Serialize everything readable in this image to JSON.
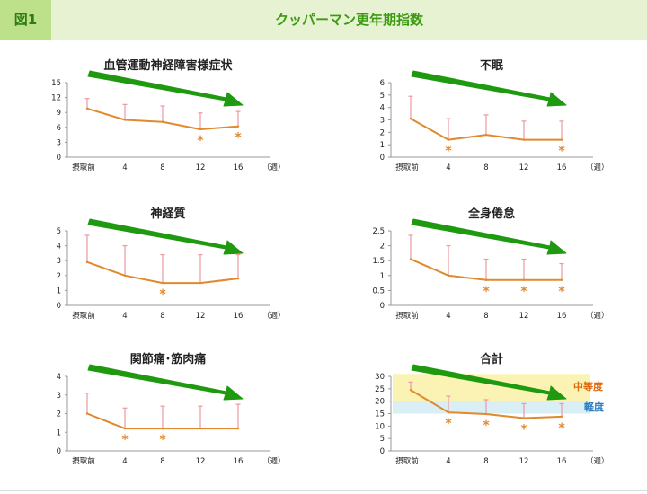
{
  "header": {
    "figure_label": "図1",
    "title": "クッパーマン更年期指数"
  },
  "colors": {
    "line": "#e0892e",
    "error_bar": "#e89aa0",
    "arrow": "#1f9a10",
    "moderate_band": "#fbf3b4",
    "mild_band": "#daeef6",
    "moderate_text": "#e06a10",
    "mild_text": "#2a7cc0"
  },
  "chart_data": [
    {
      "type": "line",
      "title": "血管運動神経障害様症状",
      "categories": [
        "摂取前",
        "4",
        "8",
        "12",
        "16"
      ],
      "x_unit": "（週）",
      "ylim": [
        0,
        15
      ],
      "yticks": [
        "0",
        "3",
        "6",
        "9",
        "12",
        "15"
      ],
      "values": [
        9.8,
        7.5,
        7.1,
        5.6,
        6.2
      ],
      "errors": [
        2.0,
        3.1,
        3.2,
        3.3,
        3.0
      ],
      "significant": [
        false,
        false,
        false,
        true,
        true
      ],
      "trend_arrow": true
    },
    {
      "type": "line",
      "title": "不眠",
      "categories": [
        "摂取前",
        "4",
        "8",
        "12",
        "16"
      ],
      "x_unit": "（週）",
      "ylim": [
        0,
        6
      ],
      "yticks": [
        "0",
        "1",
        "2",
        "3",
        "4",
        "5",
        "6"
      ],
      "values": [
        3.1,
        1.4,
        1.8,
        1.4,
        1.4
      ],
      "errors": [
        1.8,
        1.7,
        1.6,
        1.5,
        1.5
      ],
      "significant": [
        false,
        true,
        false,
        false,
        true
      ],
      "trend_arrow": true
    },
    {
      "type": "line",
      "title": "神経質",
      "categories": [
        "摂取前",
        "4",
        "8",
        "12",
        "16"
      ],
      "x_unit": "（週）",
      "ylim": [
        0,
        5
      ],
      "yticks": [
        "0",
        "1",
        "2",
        "3",
        "4",
        "5"
      ],
      "values": [
        2.9,
        2.0,
        1.5,
        1.5,
        1.8
      ],
      "errors": [
        1.8,
        2.0,
        1.9,
        1.9,
        1.6
      ],
      "significant": [
        false,
        false,
        true,
        false,
        false
      ],
      "trend_arrow": true
    },
    {
      "type": "line",
      "title": "全身倦怠",
      "categories": [
        "摂取前",
        "4",
        "8",
        "12",
        "16"
      ],
      "x_unit": "（週）",
      "ylim": [
        0,
        2.5
      ],
      "yticks": [
        "0",
        "0.5",
        "1",
        "1.5",
        "2",
        "2.5"
      ],
      "values": [
        1.55,
        1.0,
        0.85,
        0.85,
        0.85
      ],
      "errors": [
        0.8,
        1.0,
        0.7,
        0.7,
        0.55
      ],
      "significant": [
        false,
        false,
        true,
        true,
        true
      ],
      "trend_arrow": true
    },
    {
      "type": "line",
      "title": "関節痛･筋肉痛",
      "categories": [
        "摂取前",
        "4",
        "8",
        "12",
        "16"
      ],
      "x_unit": "（週）",
      "ylim": [
        0,
        4
      ],
      "yticks": [
        "0",
        "1",
        "2",
        "3",
        "4"
      ],
      "values": [
        2.0,
        1.2,
        1.2,
        1.2,
        1.2
      ],
      "errors": [
        1.1,
        1.1,
        1.2,
        1.2,
        1.3
      ],
      "significant": [
        false,
        true,
        true,
        false,
        false
      ],
      "trend_arrow": true
    },
    {
      "type": "line",
      "title": "合計",
      "categories": [
        "摂取前",
        "4",
        "8",
        "12",
        "16"
      ],
      "x_unit": "（週）",
      "ylim": [
        0,
        30
      ],
      "yticks": [
        "0",
        "5",
        "10",
        "15",
        "20",
        "25",
        "30"
      ],
      "values": [
        24.5,
        15.5,
        14.8,
        13.2,
        13.8
      ],
      "errors": [
        3.2,
        6.5,
        5.8,
        5.8,
        5.2
      ],
      "significant": [
        false,
        true,
        true,
        true,
        true
      ],
      "trend_arrow": true,
      "bands": [
        {
          "label": "中等度",
          "from": 20,
          "to": 31
        },
        {
          "label": "軽度",
          "from": 15,
          "to": 20
        }
      ]
    }
  ]
}
